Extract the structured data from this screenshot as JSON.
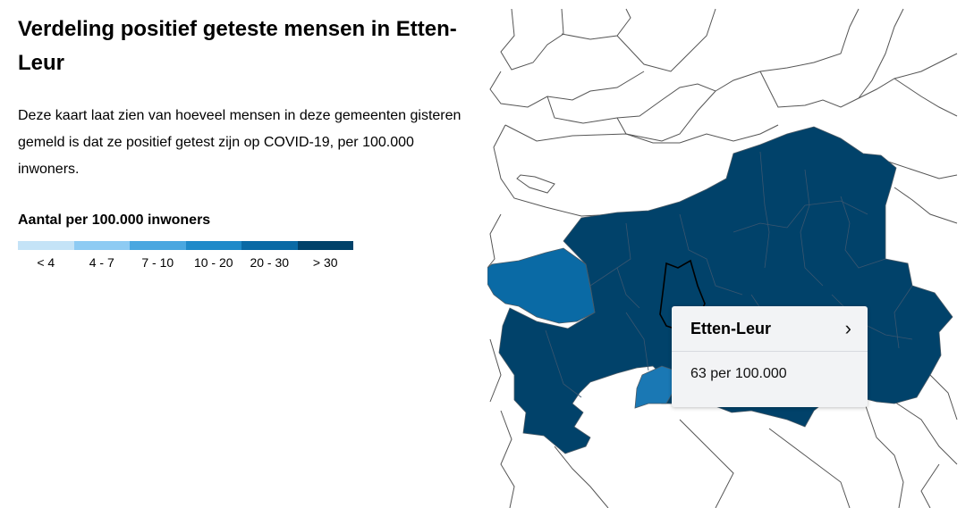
{
  "header": {
    "title": "Verdeling positief geteste mensen in Etten-Leur",
    "intro": "Deze kaart laat zien van hoeveel mensen in deze gemeenten gisteren gemeld is dat ze positief getest zijn op COVID-19, per 100.000 inwoners."
  },
  "legend": {
    "title": "Aantal per 100.000 inwoners",
    "classes": [
      {
        "label": "< 4",
        "color": "#c4e3f7"
      },
      {
        "label": "4 - 7",
        "color": "#8ecbf3"
      },
      {
        "label": "7 - 10",
        "color": "#4aa7e0"
      },
      {
        "label": "10 - 20",
        "color": "#1f8ac9"
      },
      {
        "label": "20 - 30",
        "color": "#0a6aa5"
      },
      {
        "label": "> 30",
        "color": "#01426a"
      }
    ]
  },
  "map": {
    "selected_region": "Etten-Leur",
    "colors": {
      "high": "#01426a",
      "medium": "#0a6aa5",
      "lighter": "#1a78b4",
      "no_data": "#ffffff",
      "border": "#555555"
    },
    "tooltip": {
      "name": "Etten-Leur",
      "value": "63 per 100.000",
      "icon": "chevron-right-icon"
    }
  }
}
